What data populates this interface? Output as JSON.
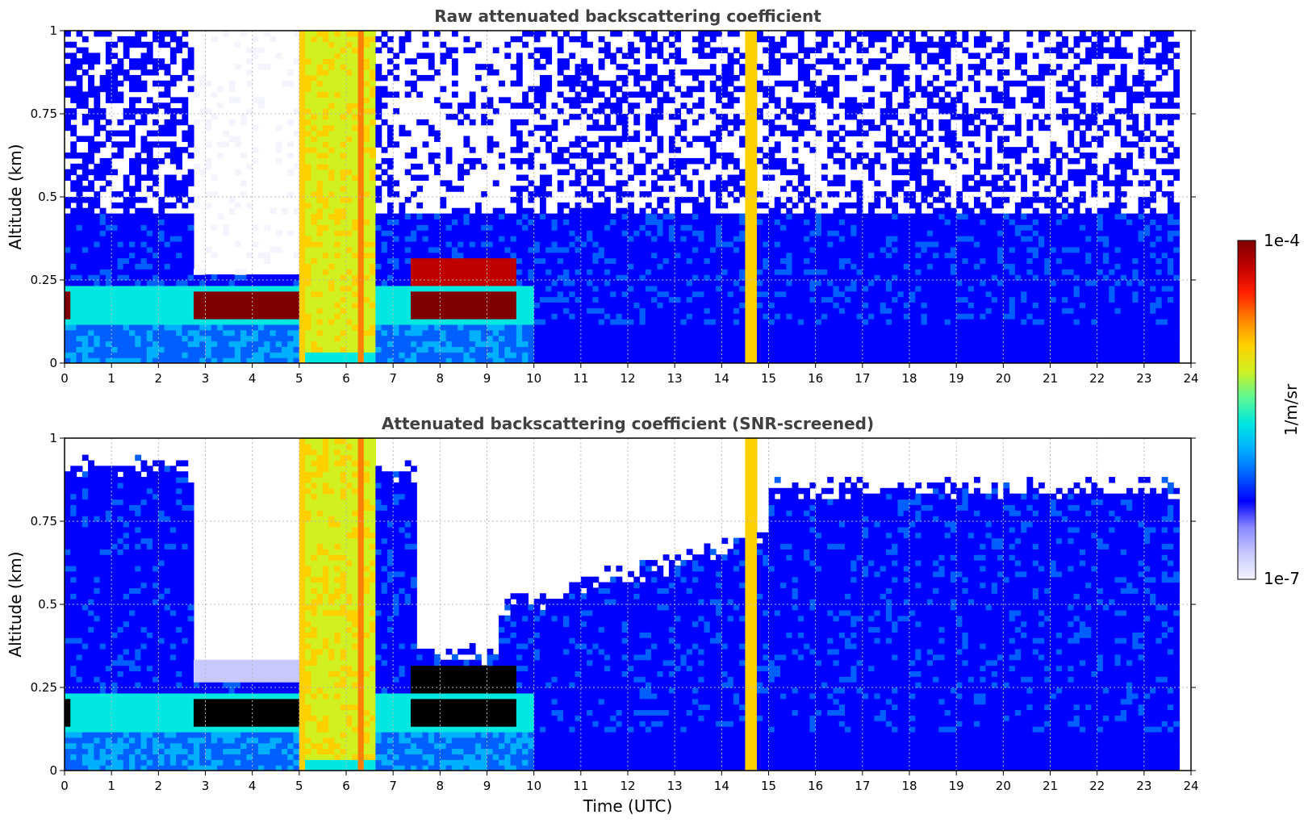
{
  "chart_data": [
    {
      "type": "heatmap",
      "title": "Raw attenuated backscattering coefficient",
      "xlabel": "",
      "ylabel": "Altitude (km)",
      "xlim": [
        0,
        24
      ],
      "ylim": [
        0,
        1
      ],
      "x_ticks": [
        "0",
        "1",
        "2",
        "3",
        "4",
        "5",
        "6",
        "7",
        "8",
        "9",
        "10",
        "11",
        "12",
        "13",
        "14",
        "15",
        "16",
        "17",
        "18",
        "19",
        "20",
        "21",
        "22",
        "23",
        "24"
      ],
      "y_ticks": [
        "0",
        "0.25",
        "0.5",
        "0.75",
        "1"
      ],
      "grid": true,
      "data_end_hour": 23.75,
      "features": [
        {
          "name": "aerosol layer",
          "start": 0,
          "end": 10,
          "altitude_km": [
            0.1,
            0.25
          ],
          "level": "high"
        },
        {
          "name": "clear region",
          "start": 2.7,
          "end": 5.0,
          "altitude_km": [
            0.27,
            1.0
          ],
          "level": "none"
        },
        {
          "name": "precipitation/fog",
          "start": 5.1,
          "end": 6.6,
          "altitude_km": [
            0.0,
            1.0
          ],
          "level": "saturated"
        },
        {
          "name": "cloud",
          "start": 7.4,
          "end": 9.6,
          "altitude_km": [
            0.12,
            0.32
          ],
          "level": "high"
        },
        {
          "name": "narrow event",
          "start": 14.5,
          "end": 14.75,
          "altitude_km": [
            0.0,
            1.0
          ],
          "level": "saturated"
        }
      ]
    },
    {
      "type": "heatmap",
      "title": "Attenuated backscattering coefficient (SNR-screened)",
      "xlabel": "Time (UTC)",
      "ylabel": "Altitude (km)",
      "xlim": [
        0,
        24
      ],
      "ylim": [
        0,
        1
      ],
      "x_ticks": [
        "0",
        "1",
        "2",
        "3",
        "4",
        "5",
        "6",
        "7",
        "8",
        "9",
        "10",
        "11",
        "12",
        "13",
        "14",
        "15",
        "16",
        "17",
        "18",
        "19",
        "20",
        "21",
        "22",
        "23",
        "24"
      ],
      "y_ticks": [
        "0",
        "0.25",
        "0.5",
        "0.75",
        "1"
      ],
      "grid": true,
      "data_end_hour": 23.75
    }
  ],
  "colorbar": {
    "min_label": "1e-7",
    "max_label": "1e-4",
    "unit_label": "1/m/sr",
    "colors": [
      "#f4f4ff",
      "#c8c8ff",
      "#8888ff",
      "#0000ff",
      "#0060ff",
      "#00b0ff",
      "#00e8e0",
      "#60f890",
      "#d0f020",
      "#ffd000",
      "#ff8000",
      "#ff2000",
      "#c00000",
      "#800000"
    ]
  }
}
